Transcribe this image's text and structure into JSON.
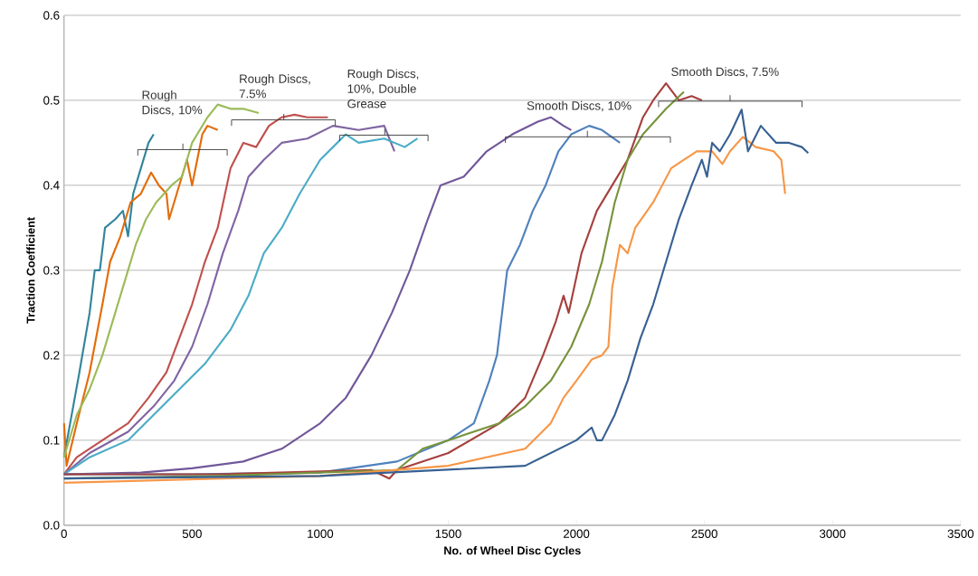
{
  "chart_data": {
    "type": "line",
    "xlabel": "No. of Wheel Disc Cycles",
    "ylabel": "Traction Coefficient",
    "xlim": [
      0,
      3500
    ],
    "xticks": [
      0,
      500,
      1000,
      1500,
      2000,
      2500,
      3000,
      3500
    ],
    "ylim": [
      0,
      0.6
    ],
    "yticks": [
      {
        "value": 0,
        "label": "0.0"
      },
      {
        "value": 0.1,
        "label": "0.1"
      },
      {
        "value": 0.2,
        "label": "0.2"
      },
      {
        "value": 0.3,
        "label": "0.3"
      },
      {
        "value": 0.4,
        "label": "0.4"
      },
      {
        "value": 0.5,
        "label": "0.5"
      },
      {
        "value": 0.6,
        "label": "0.6"
      }
    ],
    "grid": "y",
    "line_style": "solid",
    "annotations": [
      "Rough Discs, 10%",
      "Rough Discs, 7.5%",
      "Rough Discs, 10%, Double Grease",
      "Smooth Discs, 10%",
      "Smooth Discs, 7.5%"
    ],
    "series": [
      {
        "color": "#31859c",
        "x": [
          0,
          30,
          60,
          100,
          120,
          140,
          160,
          200,
          230,
          250,
          270,
          300,
          330,
          350
        ],
        "values": [
          0.08,
          0.13,
          0.18,
          0.25,
          0.3,
          0.3,
          0.35,
          0.36,
          0.37,
          0.34,
          0.39,
          0.42,
          0.45,
          0.46
        ]
      },
      {
        "color": "#e36c09",
        "x": [
          0,
          10,
          50,
          100,
          150,
          180,
          220,
          260,
          300,
          340,
          370,
          400,
          410,
          440,
          480,
          500,
          540,
          560,
          600
        ],
        "values": [
          0.12,
          0.07,
          0.12,
          0.18,
          0.26,
          0.31,
          0.34,
          0.38,
          0.39,
          0.415,
          0.4,
          0.39,
          0.36,
          0.39,
          0.43,
          0.4,
          0.46,
          0.47,
          0.465
        ]
      },
      {
        "color": "#9bbb59",
        "x": [
          0,
          50,
          100,
          150,
          200,
          250,
          280,
          320,
          360,
          420,
          460,
          500,
          560,
          600,
          650,
          700,
          760
        ],
        "values": [
          0.08,
          0.13,
          0.16,
          0.2,
          0.25,
          0.3,
          0.33,
          0.36,
          0.38,
          0.4,
          0.41,
          0.45,
          0.48,
          0.495,
          0.49,
          0.49,
          0.485
        ]
      },
      {
        "color": "#c0504d",
        "x": [
          0,
          50,
          150,
          250,
          330,
          400,
          450,
          500,
          550,
          600,
          650,
          700,
          750,
          800,
          850,
          900,
          950,
          1030
        ],
        "values": [
          0.06,
          0.08,
          0.1,
          0.12,
          0.15,
          0.18,
          0.22,
          0.26,
          0.31,
          0.35,
          0.42,
          0.45,
          0.445,
          0.47,
          0.48,
          0.483,
          0.48,
          0.48
        ]
      },
      {
        "color": "#8064a2",
        "x": [
          0,
          100,
          250,
          350,
          430,
          500,
          560,
          620,
          680,
          720,
          780,
          850,
          950,
          1050,
          1150,
          1250,
          1290
        ],
        "values": [
          0.06,
          0.085,
          0.11,
          0.14,
          0.17,
          0.21,
          0.26,
          0.32,
          0.37,
          0.41,
          0.43,
          0.45,
          0.455,
          0.47,
          0.465,
          0.47,
          0.44
        ]
      },
      {
        "color": "#4bacc6",
        "x": [
          0,
          100,
          250,
          350,
          450,
          550,
          650,
          720,
          780,
          850,
          920,
          1000,
          1050,
          1100,
          1150,
          1250,
          1330,
          1380
        ],
        "values": [
          0.06,
          0.08,
          0.1,
          0.13,
          0.16,
          0.19,
          0.23,
          0.27,
          0.32,
          0.35,
          0.39,
          0.43,
          0.445,
          0.46,
          0.45,
          0.455,
          0.445,
          0.455
        ]
      },
      {
        "color": "#71579a",
        "x": [
          0,
          300,
          500,
          700,
          850,
          1000,
          1100,
          1200,
          1280,
          1350,
          1420,
          1470,
          1560,
          1650,
          1750,
          1850,
          1900,
          1950,
          1980
        ],
        "values": [
          0.06,
          0.062,
          0.067,
          0.075,
          0.09,
          0.12,
          0.15,
          0.2,
          0.25,
          0.3,
          0.36,
          0.4,
          0.41,
          0.44,
          0.46,
          0.475,
          0.48,
          0.47,
          0.465
        ]
      },
      {
        "color": "#4f81bd",
        "x": [
          0,
          500,
          1000,
          1300,
          1500,
          1600,
          1660,
          1690,
          1730,
          1780,
          1830,
          1880,
          1930,
          1980,
          2050,
          2100,
          2170
        ],
        "values": [
          0.06,
          0.06,
          0.062,
          0.075,
          0.1,
          0.12,
          0.17,
          0.2,
          0.3,
          0.33,
          0.37,
          0.4,
          0.44,
          0.46,
          0.47,
          0.465,
          0.45
        ]
      },
      {
        "color": "#a5403c",
        "x": [
          0,
          600,
          1200,
          1270,
          1300,
          1500,
          1700,
          1800,
          1870,
          1920,
          1950,
          1970,
          2020,
          2080,
          2140,
          2200,
          2260,
          2300,
          2350,
          2400,
          2450,
          2490
        ],
        "values": [
          0.06,
          0.06,
          0.065,
          0.055,
          0.065,
          0.085,
          0.12,
          0.15,
          0.2,
          0.24,
          0.27,
          0.25,
          0.32,
          0.37,
          0.4,
          0.43,
          0.48,
          0.5,
          0.52,
          0.5,
          0.505,
          0.5
        ]
      },
      {
        "color": "#77933c",
        "x": [
          0,
          600,
          1300,
          1400,
          1700,
          1800,
          1900,
          1980,
          2050,
          2100,
          2150,
          2200,
          2260,
          2350,
          2420
        ],
        "values": [
          0.055,
          0.058,
          0.065,
          0.09,
          0.12,
          0.14,
          0.17,
          0.21,
          0.26,
          0.31,
          0.38,
          0.43,
          0.46,
          0.49,
          0.51
        ]
      },
      {
        "color": "#f79646",
        "x": [
          0,
          1000,
          1500,
          1800,
          1900,
          1950,
          2000,
          2060,
          2100,
          2125,
          2140,
          2170,
          2200,
          2230,
          2300,
          2370,
          2420,
          2470,
          2530,
          2570,
          2600,
          2650,
          2700,
          2770,
          2800,
          2815
        ],
        "values": [
          0.05,
          0.058,
          0.07,
          0.09,
          0.12,
          0.15,
          0.17,
          0.195,
          0.2,
          0.21,
          0.28,
          0.33,
          0.32,
          0.35,
          0.38,
          0.42,
          0.43,
          0.44,
          0.44,
          0.425,
          0.44,
          0.457,
          0.445,
          0.44,
          0.43,
          0.39
        ]
      },
      {
        "color": "#376092",
        "x": [
          0,
          1000,
          1800,
          2000,
          2060,
          2080,
          2100,
          2150,
          2200,
          2250,
          2300,
          2350,
          2400,
          2450,
          2490,
          2510,
          2530,
          2560,
          2600,
          2645,
          2670,
          2720,
          2780,
          2830,
          2880,
          2905
        ],
        "values": [
          0.055,
          0.058,
          0.07,
          0.1,
          0.115,
          0.1,
          0.1,
          0.13,
          0.17,
          0.22,
          0.26,
          0.31,
          0.36,
          0.4,
          0.43,
          0.41,
          0.45,
          0.44,
          0.46,
          0.489,
          0.44,
          0.47,
          0.45,
          0.45,
          0.445,
          0.438
        ]
      }
    ]
  }
}
